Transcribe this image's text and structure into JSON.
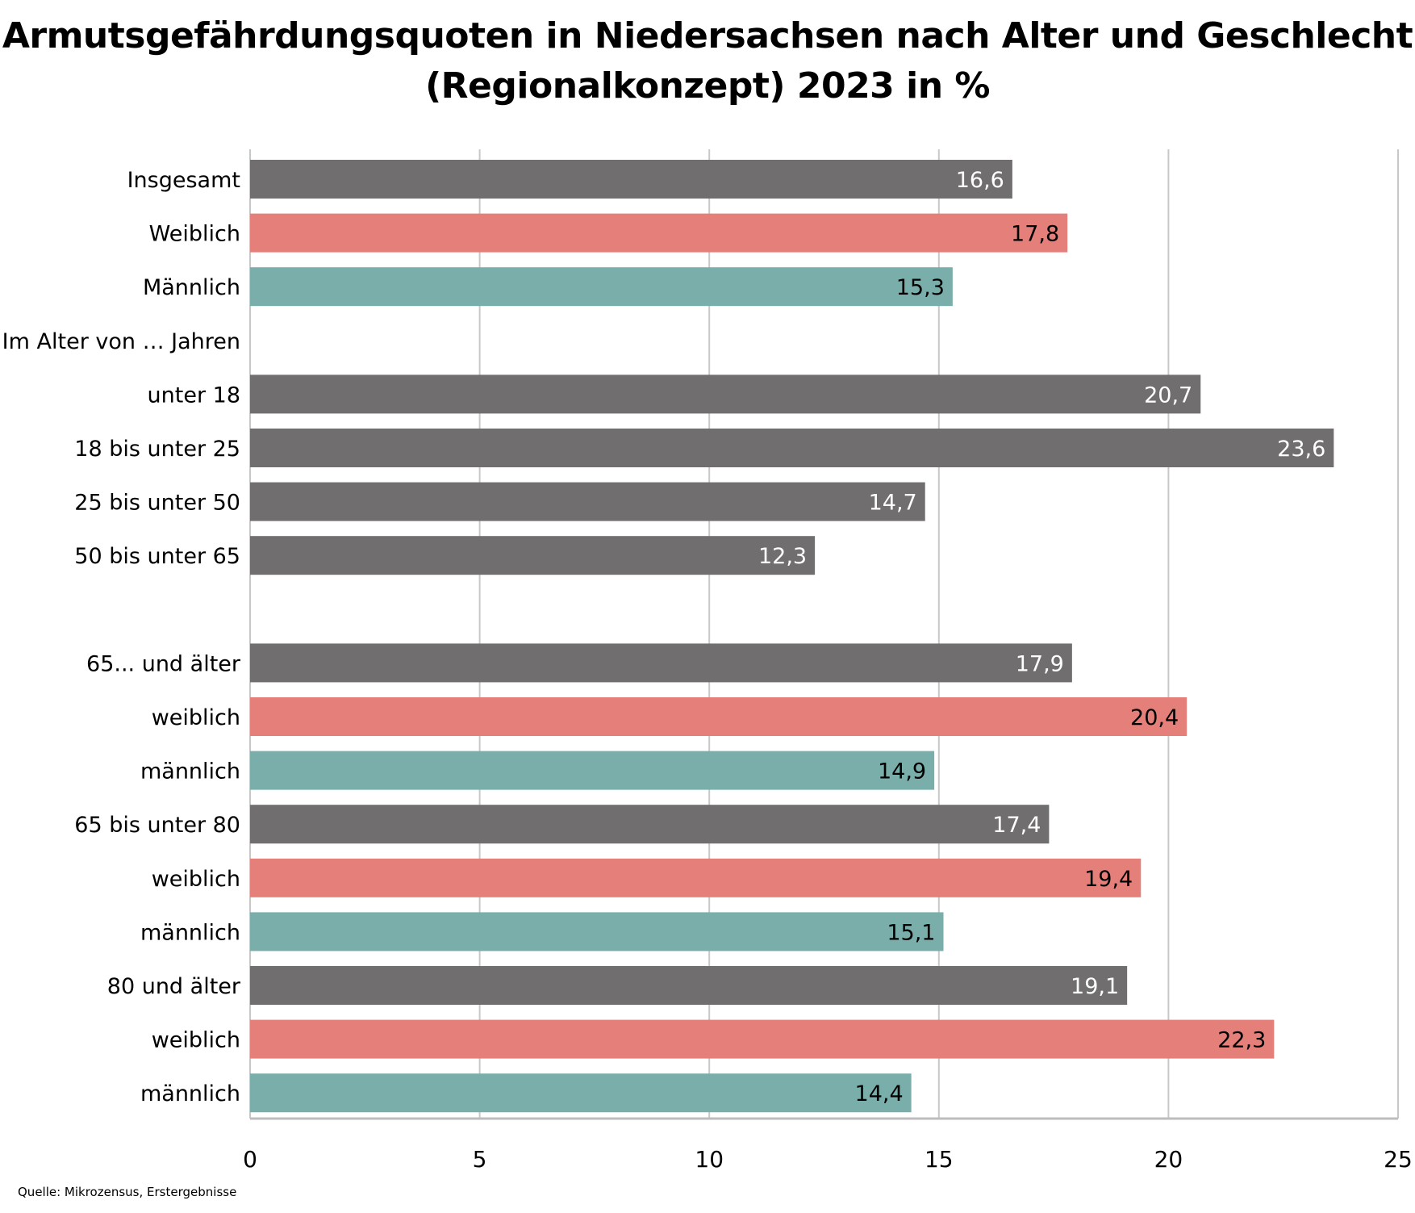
{
  "title_line1": "Armutsgefährdungsquoten in Niedersachsen nach Alter und Geschlecht",
  "title_line2": "(Regionalkonzept) 2023 in %",
  "source": "Quelle: Mikrozensus, Erstergebnisse",
  "colors": {
    "total": "#706e6f",
    "female": "#e57f7a",
    "male": "#79aeaa",
    "grid": "#c8c8c8"
  },
  "chart_data": {
    "type": "bar",
    "orientation": "horizontal",
    "title": "Armutsgefährdungsquoten in Niedersachsen nach Alter und Geschlecht (Regionalkonzept) 2023 in %",
    "xlim": [
      0,
      25
    ],
    "xticks": [
      "0",
      "5",
      "10",
      "15",
      "20",
      "25"
    ],
    "grid": true,
    "categories": [
      "Insgesamt",
      "Weiblich",
      "Männlich",
      "Im Alter von … Jahren",
      "unter 18",
      "18 bis unter 25",
      "25 bis unter 50",
      "50 bis unter 65",
      "",
      "65... und älter",
      "weiblich",
      "männlich",
      "65 bis unter 80",
      "weiblich",
      "männlich",
      "80 und älter",
      "weiblich",
      "männlich"
    ],
    "values": [
      16.6,
      17.8,
      15.3,
      null,
      20.7,
      23.6,
      14.7,
      12.3,
      null,
      17.9,
      20.4,
      14.9,
      17.4,
      19.4,
      15.1,
      19.1,
      22.3,
      14.4
    ],
    "labels": [
      "16,6",
      "17,8",
      "15,3",
      "",
      "20,7",
      "23,6",
      "14,7",
      "12,3",
      "",
      "17,9",
      "20,4",
      "14,9",
      "17,4",
      "19,4",
      "15,1",
      "19,1",
      "22,3",
      "14,4"
    ],
    "groups": [
      "total",
      "female",
      "male",
      "",
      "total",
      "total",
      "total",
      "total",
      "",
      "total",
      "female",
      "male",
      "total",
      "female",
      "male",
      "total",
      "female",
      "male"
    ]
  }
}
